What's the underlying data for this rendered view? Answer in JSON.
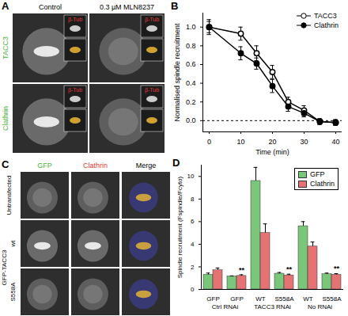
{
  "panels": {
    "A": {
      "label": "A",
      "columns": [
        "Control",
        "0.3 µM MLN8237"
      ],
      "rows": [
        "TACC3",
        "Clathrin"
      ],
      "inset_label": "β-Tub"
    },
    "C": {
      "label": "C",
      "columns": [
        "GFP",
        "Clathrin",
        "Merge"
      ],
      "group": "GFP-TACC3",
      "rows": [
        "Untransfected",
        "wt",
        "S558A"
      ]
    }
  },
  "chart_data": [
    {
      "type": "line",
      "title": "B",
      "x": [
        0,
        10,
        15,
        20,
        25,
        30,
        35,
        40
      ],
      "series": [
        {
          "name": "TACC3",
          "color": "#000000",
          "marker": "open_circle",
          "values": [
            1.0,
            0.93,
            0.72,
            0.52,
            0.2,
            0.11,
            -0.01,
            -0.02
          ],
          "errors": [
            0.06,
            0.07,
            0.08,
            0.07,
            0.05,
            0.05,
            0.03,
            0.03
          ]
        },
        {
          "name": "Clathrin",
          "color": "#000000",
          "marker": "circle",
          "values": [
            1.0,
            0.72,
            0.61,
            0.37,
            0.15,
            0.08,
            -0.01,
            -0.02
          ],
          "errors": [
            0.08,
            0.07,
            0.06,
            0.07,
            0.05,
            0.04,
            0.03,
            0.03
          ]
        }
      ],
      "x_label": "Time (min)",
      "y_label": "Normalised spindle recruitment",
      "xlim": [
        -2,
        42
      ],
      "ylim": [
        -0.12,
        1.15
      ],
      "xticks": [
        0,
        10,
        20,
        30,
        40
      ],
      "yticks": [
        {
          "value": 0,
          "label": "0.0"
        },
        {
          "value": 0.2,
          "label": "0.2"
        },
        {
          "value": 0.4,
          "label": "0.4"
        },
        {
          "value": 0.6,
          "label": "0.6"
        },
        {
          "value": 0.8,
          "label": "0.8"
        },
        {
          "value": 1,
          "label": "1.0"
        }
      ],
      "legend": "upper right",
      "reference_line": {
        "y": 0,
        "line_style": "dashed"
      }
    },
    {
      "type": "bar",
      "title": "D",
      "categories": [
        "GFP",
        "GFP",
        "WT",
        "S558A",
        "WT",
        "S558A"
      ],
      "group_labels": [
        "Ctrl RNAi",
        "TACC3 RNAi",
        "No RNAi"
      ],
      "series": [
        {
          "name": "GFP",
          "color": "#7ac67a",
          "values": [
            1.3,
            1.15,
            9.6,
            1.4,
            5.6,
            1.35
          ],
          "errors": [
            0.15,
            0.05,
            1.2,
            0.1,
            0.4,
            0.1
          ]
        },
        {
          "name": "Clathrin",
          "color": "#e57373",
          "values": [
            1.7,
            1.2,
            5.0,
            1.25,
            3.8,
            1.3
          ],
          "errors": [
            0.2,
            0.1,
            0.8,
            0.1,
            0.4,
            0.1
          ]
        }
      ],
      "y_label": "Spindle recruitment (Fspindle/Fcyto)",
      "ylim": [
        0,
        11
      ],
      "yticks": [
        0,
        2,
        4,
        6,
        8,
        10
      ],
      "legend": "upper right",
      "annotations": [
        {
          "text": "**",
          "category": 1,
          "series": "Clathrin"
        },
        {
          "text": "**",
          "category": 3,
          "series": "Clathrin"
        },
        {
          "text": "**",
          "category": 5,
          "series": "Clathrin"
        }
      ]
    }
  ]
}
